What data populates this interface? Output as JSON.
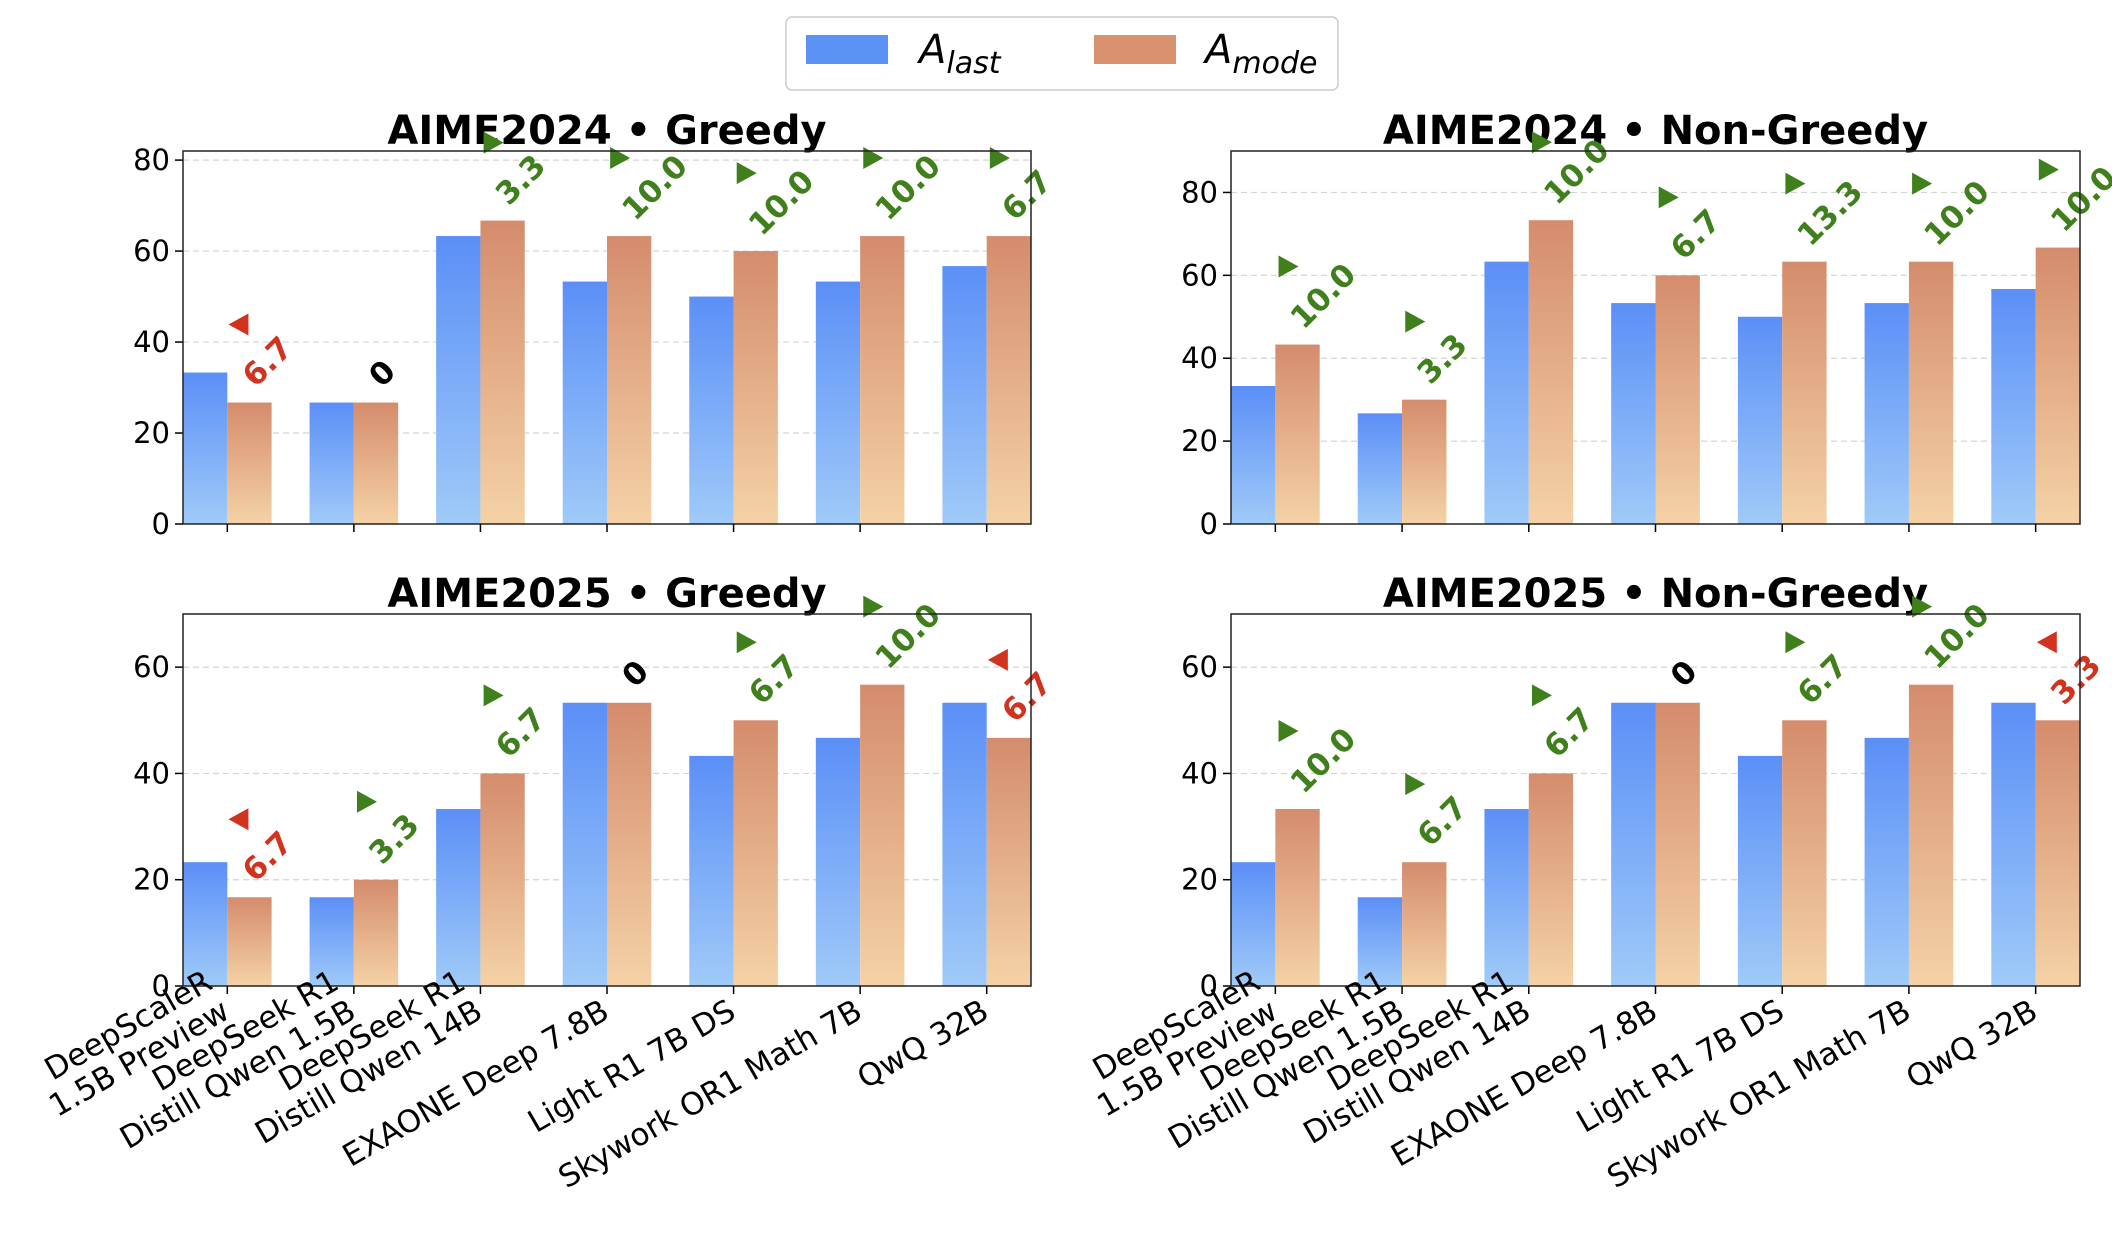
{
  "legend": {
    "items": [
      {
        "symbol": "A",
        "subscript": "last",
        "color": "#5b93f5"
      },
      {
        "symbol": "A",
        "subscript": "mode",
        "color": "#d99270"
      }
    ]
  },
  "colors": {
    "last_top": "#5b8ff7",
    "last_bottom": "#9fcaf8",
    "mode_top": "#d48c6c",
    "mode_bottom": "#f5d2a6",
    "up": "#3f7f1c",
    "down": "#d1331f",
    "zero": "#000000"
  },
  "chart_data": [
    {
      "type": "bar",
      "title": "AIME2024 • Greedy",
      "categories": [
        "DeepScaleR\n1.5B Preview",
        "DeepSeek R1\nDistill Qwen 1.5B",
        "DeepSeek R1\nDistill Qwen 14B",
        "EXAONE Deep 7.8B",
        "Light R1 7B DS",
        "Skywork OR1 Math 7B",
        "QwQ 32B"
      ],
      "series": [
        {
          "name": "A_last",
          "values": [
            33.3,
            26.7,
            63.3,
            53.3,
            50.0,
            53.3,
            56.7
          ]
        },
        {
          "name": "A_mode",
          "values": [
            26.7,
            26.7,
            66.7,
            63.3,
            60.0,
            63.3,
            63.3
          ]
        }
      ],
      "deltas": [
        {
          "dir": "down",
          "label": "6.7"
        },
        {
          "dir": "zero",
          "label": "0"
        },
        {
          "dir": "up",
          "label": "3.3"
        },
        {
          "dir": "up",
          "label": "10.0"
        },
        {
          "dir": "up",
          "label": "10.0"
        },
        {
          "dir": "up",
          "label": "10.0"
        },
        {
          "dir": "up",
          "label": "6.7"
        }
      ],
      "ylim": [
        0,
        82
      ],
      "yticks": [
        0,
        20,
        40,
        60,
        80
      ]
    },
    {
      "type": "bar",
      "title": "AIME2024 • Non-Greedy",
      "categories": [
        "DeepScaleR\n1.5B Preview",
        "DeepSeek R1\nDistill Qwen 1.5B",
        "DeepSeek R1\nDistill Qwen 14B",
        "EXAONE Deep 7.8B",
        "Light R1 7B DS",
        "Skywork OR1 Math 7B",
        "QwQ 32B"
      ],
      "series": [
        {
          "name": "A_last",
          "values": [
            33.3,
            26.7,
            63.3,
            53.3,
            50.0,
            53.3,
            56.7
          ]
        },
        {
          "name": "A_mode",
          "values": [
            43.3,
            30.0,
            73.3,
            60.0,
            63.3,
            63.3,
            66.7
          ]
        }
      ],
      "deltas": [
        {
          "dir": "up",
          "label": "10.0"
        },
        {
          "dir": "up",
          "label": "3.3"
        },
        {
          "dir": "up",
          "label": "10.0"
        },
        {
          "dir": "up",
          "label": "6.7"
        },
        {
          "dir": "up",
          "label": "13.3"
        },
        {
          "dir": "up",
          "label": "10.0"
        },
        {
          "dir": "up",
          "label": "10.0"
        }
      ],
      "ylim": [
        0,
        90
      ],
      "yticks": [
        0,
        20,
        40,
        60,
        80
      ]
    },
    {
      "type": "bar",
      "title": "AIME2025 • Greedy",
      "categories": [
        "DeepScaleR\n1.5B Preview",
        "DeepSeek R1\nDistill Qwen 1.5B",
        "DeepSeek R1\nDistill Qwen 14B",
        "EXAONE Deep 7.8B",
        "Light R1 7B DS",
        "Skywork OR1 Math 7B",
        "QwQ 32B"
      ],
      "series": [
        {
          "name": "A_last",
          "values": [
            23.3,
            16.7,
            33.3,
            53.3,
            43.3,
            46.7,
            53.3
          ]
        },
        {
          "name": "A_mode",
          "values": [
            16.7,
            20.0,
            40.0,
            53.3,
            50.0,
            56.7,
            46.7
          ]
        }
      ],
      "deltas": [
        {
          "dir": "down",
          "label": "6.7"
        },
        {
          "dir": "up",
          "label": "3.3"
        },
        {
          "dir": "up",
          "label": "6.7"
        },
        {
          "dir": "zero",
          "label": "0"
        },
        {
          "dir": "up",
          "label": "6.7"
        },
        {
          "dir": "up",
          "label": "10.0"
        },
        {
          "dir": "down",
          "label": "6.7"
        }
      ],
      "ylim": [
        0,
        70
      ],
      "yticks": [
        0,
        20,
        40,
        60
      ]
    },
    {
      "type": "bar",
      "title": "AIME2025 • Non-Greedy",
      "categories": [
        "DeepScaleR\n1.5B Preview",
        "DeepSeek R1\nDistill Qwen 1.5B",
        "DeepSeek R1\nDistill Qwen 14B",
        "EXAONE Deep 7.8B",
        "Light R1 7B DS",
        "Skywork OR1 Math 7B",
        "QwQ 32B"
      ],
      "series": [
        {
          "name": "A_last",
          "values": [
            23.3,
            16.7,
            33.3,
            53.3,
            43.3,
            46.7,
            53.3
          ]
        },
        {
          "name": "A_mode",
          "values": [
            33.3,
            23.3,
            40.0,
            53.3,
            50.0,
            56.7,
            50.0
          ]
        }
      ],
      "deltas": [
        {
          "dir": "up",
          "label": "10.0"
        },
        {
          "dir": "up",
          "label": "6.7"
        },
        {
          "dir": "up",
          "label": "6.7"
        },
        {
          "dir": "zero",
          "label": "0"
        },
        {
          "dir": "up",
          "label": "6.7"
        },
        {
          "dir": "up",
          "label": "10.0"
        },
        {
          "dir": "down",
          "label": "3.3"
        }
      ],
      "ylim": [
        0,
        70
      ],
      "yticks": [
        0,
        20,
        40,
        60
      ]
    }
  ]
}
